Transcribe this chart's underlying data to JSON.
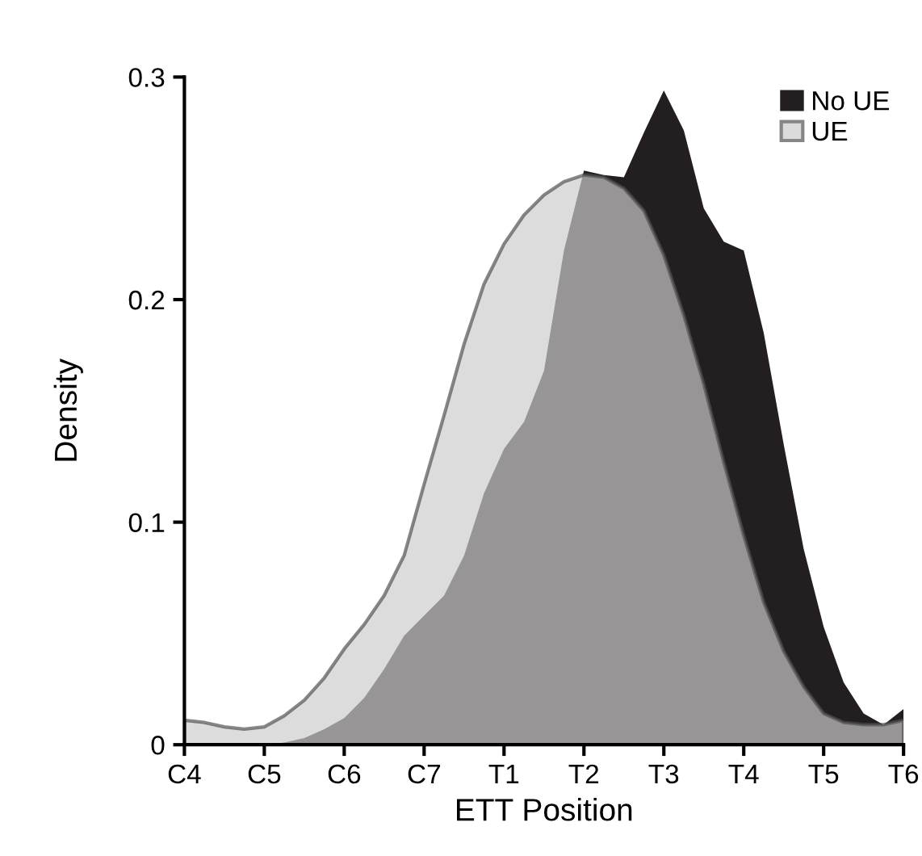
{
  "chart_data": {
    "type": "area",
    "xlabel": "ETT Position",
    "ylabel": "Density",
    "categories": [
      "C4",
      null,
      null,
      null,
      "C5",
      null,
      null,
      null,
      "C6",
      null,
      null,
      null,
      "C7",
      null,
      null,
      null,
      "T1",
      null,
      null,
      null,
      "T2",
      null,
      null,
      null,
      "T3",
      null,
      null,
      null,
      "T4",
      null,
      null,
      null,
      "T5",
      null,
      null,
      null,
      "T6"
    ],
    "ylim": [
      0,
      0.3
    ],
    "yticks": [
      0,
      0.1,
      0.2,
      0.3
    ],
    "grid": false,
    "legend": "top right",
    "series": [
      {
        "name": "No UE",
        "color": "#231f20",
        "values": [
          0,
          0,
          0,
          0,
          0,
          0.001,
          0.003,
          0.007,
          0.012,
          0.021,
          0.034,
          0.049,
          0.058,
          0.067,
          0.085,
          0.113,
          0.133,
          0.145,
          0.168,
          0.222,
          0.258,
          0.256,
          0.255,
          0.275,
          0.294,
          0.276,
          0.241,
          0.226,
          0.222,
          0.185,
          0.135,
          0.088,
          0.053,
          0.028,
          0.014,
          0.009,
          0.016
        ]
      },
      {
        "name": "UE",
        "color": "#cccccc",
        "values": [
          0.011,
          0.01,
          0.008,
          0.007,
          0.008,
          0.013,
          0.02,
          0.03,
          0.043,
          0.054,
          0.067,
          0.085,
          0.117,
          0.148,
          0.18,
          0.207,
          0.225,
          0.238,
          0.247,
          0.253,
          0.256,
          0.255,
          0.25,
          0.24,
          0.22,
          0.193,
          0.162,
          0.127,
          0.094,
          0.064,
          0.042,
          0.026,
          0.014,
          0.01,
          0.009,
          0.009,
          0.011
        ]
      }
    ]
  }
}
